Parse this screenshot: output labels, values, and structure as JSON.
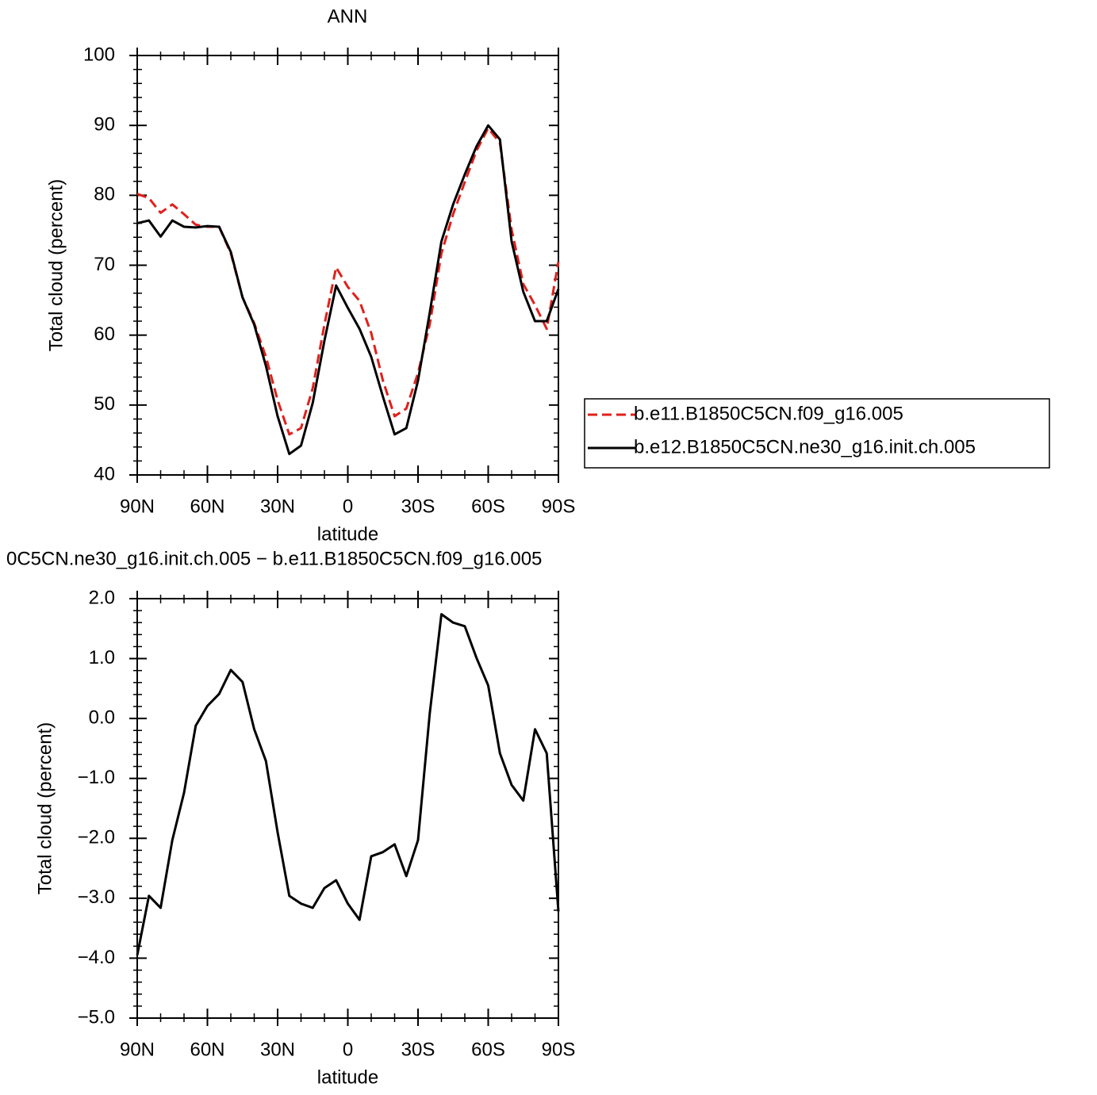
{
  "chart_data": [
    {
      "type": "line",
      "title": "ANN",
      "xlabel": "latitude",
      "ylabel": "Total cloud (percent)",
      "x": [
        90,
        85,
        80,
        75,
        70,
        65,
        60,
        55,
        50,
        45,
        40,
        35,
        30,
        25,
        20,
        15,
        10,
        5,
        0,
        -5,
        -10,
        -15,
        -20,
        -25,
        -30,
        -35,
        -40,
        -45,
        -50,
        -55,
        -60,
        -65,
        -70,
        -75,
        -80,
        -85,
        -90
      ],
      "series": [
        {
          "name": "b.e11.B1850C5CN.f09_g16.005",
          "color": "#e0201b",
          "linestyle": "dashed",
          "values": [
            80.2,
            79.6,
            77.5,
            78.7,
            77.3,
            75.8,
            75.5,
            75.5,
            71.7,
            65.4,
            61.7,
            56.9,
            50.7,
            45.8,
            46.7,
            52.4,
            61.5,
            69.7,
            66.9,
            64.9,
            60.3,
            53.5,
            48.4,
            49.5,
            54.6,
            61.5,
            71.7,
            77.3,
            81.9,
            86.4,
            89.6,
            87.5,
            75.1,
            67.3,
            64.3,
            60.9,
            70.5
          ]
        },
        {
          "name": "b.e12.B1850C5CN.ne30_g16.init.ch.005",
          "color": "#000000",
          "linestyle": "solid",
          "values": [
            76.0,
            76.4,
            74.1,
            76.4,
            75.5,
            75.4,
            75.6,
            75.5,
            71.9,
            65.4,
            61.5,
            55.6,
            48.4,
            43.0,
            44.2,
            50.3,
            59.2,
            67.1,
            63.9,
            60.9,
            56.9,
            51.2,
            45.8,
            46.7,
            53.5,
            63.2,
            73.4,
            78.7,
            83.0,
            87.0,
            90.0,
            88.0,
            73.4,
            66.2,
            62.0,
            62.0,
            66.6
          ]
        }
      ],
      "xlim": [
        90,
        -90
      ],
      "xticks": [
        {
          "value": 90,
          "label": "90N"
        },
        {
          "value": 60,
          "label": "60N"
        },
        {
          "value": 30,
          "label": "30N"
        },
        0,
        {
          "value": -30,
          "label": "30S"
        },
        {
          "value": -60,
          "label": "60S"
        },
        {
          "value": -90,
          "label": "90S"
        }
      ],
      "ylim": [
        40,
        100
      ],
      "yticks": [
        40,
        50,
        60,
        70,
        80,
        90,
        100
      ],
      "legend": "right"
    },
    {
      "type": "line",
      "title": "0C5CN.ne30_g16.init.ch.005 − b.e11.B1850C5CN.f09_g16.005",
      "xlabel": "latitude",
      "ylabel": "Total cloud (percent)",
      "x": [
        90,
        85,
        80,
        75,
        70,
        65,
        60,
        55,
        50,
        45,
        40,
        35,
        30,
        25,
        20,
        15,
        10,
        5,
        0,
        -5,
        -10,
        -15,
        -20,
        -25,
        -30,
        -35,
        -40,
        -45,
        -50,
        -55,
        -60,
        -65,
        -70,
        -75,
        -80,
        -85,
        -90
      ],
      "series": [
        {
          "name": null,
          "color": "#000000",
          "linestyle": "solid",
          "values": [
            -3.95,
            -2.96,
            -3.16,
            -2.03,
            -1.24,
            -0.12,
            0.21,
            0.41,
            0.81,
            0.61,
            -0.18,
            -0.71,
            -1.9,
            -2.96,
            -3.09,
            -3.16,
            -2.83,
            -2.7,
            -3.09,
            -3.36,
            -2.3,
            -2.23,
            -2.1,
            -2.63,
            -2.03,
            0.08,
            1.74,
            1.6,
            1.54,
            1.01,
            0.55,
            -0.58,
            -1.11,
            -1.37,
            -0.18,
            -0.58,
            -3.22
          ]
        }
      ],
      "xlim": [
        90,
        -90
      ],
      "xticks": [
        {
          "value": 90,
          "label": "90N"
        },
        {
          "value": 60,
          "label": "60N"
        },
        {
          "value": 30,
          "label": "30N"
        },
        0,
        {
          "value": -30,
          "label": "30S"
        },
        {
          "value": -60,
          "label": "60S"
        },
        {
          "value": -90,
          "label": "90S"
        }
      ],
      "ylim": [
        -5,
        2
      ],
      "yticks": [
        {
          "value": -5,
          "label": "−5.0"
        },
        {
          "value": -4,
          "label": "−4.0"
        },
        {
          "value": -3,
          "label": "−3.0"
        },
        {
          "value": -2,
          "label": "−2.0"
        },
        {
          "value": -1,
          "label": "−1.0"
        },
        {
          "value": 0,
          "label": "0.0"
        },
        {
          "value": 1,
          "label": "1.0"
        },
        {
          "value": 2,
          "label": "2.0"
        }
      ]
    }
  ]
}
